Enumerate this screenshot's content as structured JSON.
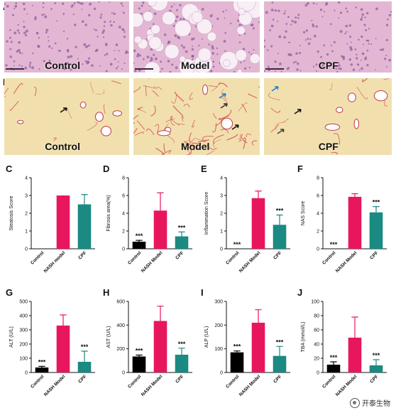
{
  "figure": {
    "panels": {
      "A": "A",
      "B": "B",
      "C": "C",
      "D": "D",
      "E": "E",
      "F": "F",
      "G": "G",
      "H": "H",
      "I": "I",
      "J": "J"
    },
    "micrograph_rows": [
      {
        "letter": "A",
        "stain": "he",
        "tiles": [
          "Control",
          "Model",
          "CPF"
        ]
      },
      {
        "letter": "B",
        "stain": "sirius",
        "tiles": [
          "Control",
          "Model",
          "CPF"
        ]
      }
    ],
    "colors": {
      "control": "#000000",
      "nash": "#e8175d",
      "cpf": "#1a8a82",
      "he_bg": "#e3b7d3",
      "sirius_bg": "#f1e0ae"
    },
    "watermark": "开泰生物"
  },
  "chart_data": [
    {
      "id": "C",
      "type": "bar",
      "ylabel": "Steatosis Score",
      "ylim": [
        0,
        4
      ],
      "yticks": [
        0,
        1,
        2,
        3,
        4
      ],
      "categories": [
        "Control",
        "NASH model",
        "CPF"
      ],
      "values": [
        0,
        3,
        2.5
      ],
      "errors": [
        0,
        0,
        0.55
      ],
      "sig": [
        "",
        "",
        ""
      ]
    },
    {
      "id": "D",
      "type": "bar",
      "ylabel": "Fibrosis area(%)",
      "ylim": [
        0,
        8
      ],
      "yticks": [
        0,
        2,
        4,
        6,
        8
      ],
      "categories": [
        "Control",
        "NASH Model",
        "CPF"
      ],
      "values": [
        0.8,
        4.3,
        1.4
      ],
      "errors": [
        0.15,
        2.0,
        0.5
      ],
      "sig": [
        "***",
        "",
        "***"
      ]
    },
    {
      "id": "E",
      "type": "bar",
      "ylabel": "Inflammation Score",
      "ylim": [
        0,
        4
      ],
      "yticks": [
        0,
        1,
        2,
        3,
        4
      ],
      "categories": [
        "Control",
        "NASH Model",
        "CPF"
      ],
      "values": [
        0,
        2.85,
        1.35
      ],
      "errors": [
        0,
        0.4,
        0.55
      ],
      "sig": [
        "***",
        "",
        "***"
      ]
    },
    {
      "id": "F",
      "type": "bar",
      "ylabel": "NAS Score",
      "ylim": [
        0,
        8
      ],
      "yticks": [
        0,
        2,
        4,
        6,
        8
      ],
      "categories": [
        "Control",
        "NASH Model",
        "CPF"
      ],
      "values": [
        0,
        5.85,
        4.1
      ],
      "errors": [
        0,
        0.35,
        0.65
      ],
      "sig": [
        "***",
        "",
        "***"
      ]
    },
    {
      "id": "G",
      "type": "bar",
      "ylabel": "ALT (U/L)",
      "ylim": [
        0,
        500
      ],
      "yticks": [
        0,
        100,
        200,
        300,
        400,
        500
      ],
      "categories": [
        "Control",
        "NASH Model",
        "CPF"
      ],
      "values": [
        35,
        330,
        75
      ],
      "errors": [
        8,
        75,
        75
      ],
      "sig": [
        "***",
        "",
        "***"
      ]
    },
    {
      "id": "H",
      "type": "bar",
      "ylabel": "AST (U/L)",
      "ylim": [
        0,
        600
      ],
      "yticks": [
        0,
        200,
        400,
        600
      ],
      "categories": [
        "Control",
        "NASH Model",
        "CPF"
      ],
      "values": [
        135,
        435,
        150
      ],
      "errors": [
        12,
        125,
        55
      ],
      "sig": [
        "***",
        "",
        "***"
      ]
    },
    {
      "id": "I",
      "type": "bar",
      "ylabel": "ALP (U/L)",
      "ylim": [
        0,
        300
      ],
      "yticks": [
        0,
        100,
        200,
        300
      ],
      "categories": [
        "Control",
        "NASH Model",
        "CPF"
      ],
      "values": [
        85,
        210,
        70
      ],
      "errors": [
        6,
        55,
        40
      ],
      "sig": [
        "***",
        "",
        "***"
      ]
    },
    {
      "id": "J",
      "type": "bar",
      "ylabel": "TBA (mmol/L)",
      "ylim": [
        0,
        100
      ],
      "yticks": [
        0,
        20,
        40,
        60,
        80,
        100
      ],
      "categories": [
        "Control",
        "NASH Model",
        "CPF"
      ],
      "values": [
        11,
        49,
        10
      ],
      "errors": [
        4,
        29,
        8
      ],
      "sig": [
        "***",
        "",
        "***"
      ]
    }
  ]
}
